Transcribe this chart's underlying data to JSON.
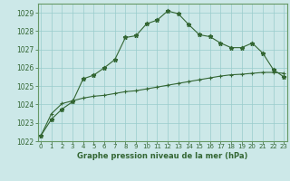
{
  "xlabel": "Graphe pression niveau de la mer (hPa)",
  "x_ticks": [
    0,
    1,
    2,
    3,
    4,
    5,
    6,
    7,
    8,
    9,
    10,
    11,
    12,
    13,
    14,
    15,
    16,
    17,
    18,
    19,
    20,
    21,
    22,
    23
  ],
  "ylim": [
    1022,
    1029.5
  ],
  "yticks": [
    1022,
    1023,
    1024,
    1025,
    1026,
    1027,
    1028,
    1029
  ],
  "xlim": [
    -0.3,
    23.3
  ],
  "bg_color": "#cce8e8",
  "grid_color": "#99cccc",
  "line_color": "#336633",
  "line1_y": [
    1022.3,
    1023.2,
    1023.75,
    1024.15,
    1025.4,
    1025.6,
    1026.0,
    1026.45,
    1027.65,
    1027.75,
    1028.4,
    1028.6,
    1029.1,
    1028.95,
    1028.35,
    1027.8,
    1027.7,
    1027.35,
    1027.1,
    1027.1,
    1027.35,
    1026.8,
    1025.9,
    1025.5
  ],
  "line2_y": [
    1022.3,
    1023.5,
    1024.05,
    1024.2,
    1024.35,
    1024.45,
    1024.5,
    1024.6,
    1024.7,
    1024.75,
    1024.85,
    1024.95,
    1025.05,
    1025.15,
    1025.25,
    1025.35,
    1025.45,
    1025.55,
    1025.62,
    1025.65,
    1025.7,
    1025.75,
    1025.75,
    1025.7
  ],
  "tick_color": "#336633",
  "label_color": "#336633",
  "spine_color": "#669966"
}
